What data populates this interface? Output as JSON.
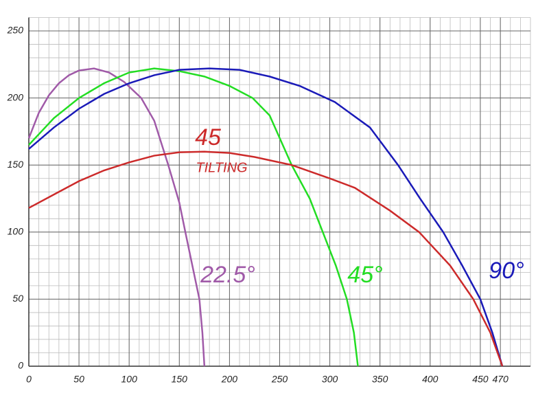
{
  "chart_data": {
    "type": "line",
    "xlim": [
      0,
      500
    ],
    "ylim": [
      0,
      260
    ],
    "xticks": [
      0,
      50,
      100,
      150,
      200,
      250,
      300,
      350,
      400,
      450,
      470
    ],
    "yticks": [
      0,
      50,
      100,
      150,
      200,
      250
    ],
    "grid": true,
    "series": [
      {
        "color": "#a05aa8",
        "x": [
          0,
          10,
          20,
          30,
          40,
          50,
          65,
          80,
          95,
          112,
          125,
          139,
          150,
          156,
          163,
          170,
          173,
          175
        ],
        "values": [
          170,
          189,
          202,
          211,
          217,
          220.5,
          222,
          219,
          212,
          200,
          183,
          150,
          122,
          100,
          75,
          50,
          25,
          0
        ]
      },
      {
        "color": "#22dd22",
        "x": [
          0,
          25,
          50,
          75,
          100,
          125,
          150,
          175,
          200,
          223,
          240,
          262,
          280,
          293,
          306,
          317,
          324,
          328
        ],
        "values": [
          165,
          185,
          200,
          211,
          219,
          222,
          220,
          216,
          209,
          200,
          187,
          150,
          125,
          100,
          75,
          50,
          25,
          0
        ]
      },
      {
        "color": "#1a1ab8",
        "x": [
          0,
          25,
          50,
          75,
          100,
          125,
          150,
          180,
          210,
          240,
          270,
          305,
          340,
          368,
          390,
          413,
          432,
          450,
          462,
          472
        ],
        "values": [
          162,
          178,
          192,
          203,
          211,
          217,
          221,
          222,
          221,
          216,
          209,
          197,
          178,
          150,
          125,
          100,
          75,
          50,
          25,
          0
        ]
      },
      {
        "color": "#cc2a2a",
        "x": [
          0,
          25,
          50,
          75,
          100,
          125,
          150,
          175,
          200,
          225,
          262,
          300,
          325,
          360,
          389,
          420,
          443,
          460,
          472
        ],
        "values": [
          118,
          128,
          138,
          146,
          152,
          157,
          159.5,
          160,
          159,
          156,
          150,
          140,
          133,
          116,
          100,
          75,
          50,
          25,
          0
        ]
      }
    ],
    "annotations": [
      {
        "text": "22.5°",
        "color": "#a05aa8"
      },
      {
        "text": "45°",
        "color": "#22dd22"
      },
      {
        "text": "90°",
        "color": "#1a1ab8"
      },
      {
        "text": "45",
        "color": "#cc2a2a"
      },
      {
        "text": "TILTING",
        "color": "#cc2a2a"
      }
    ]
  }
}
